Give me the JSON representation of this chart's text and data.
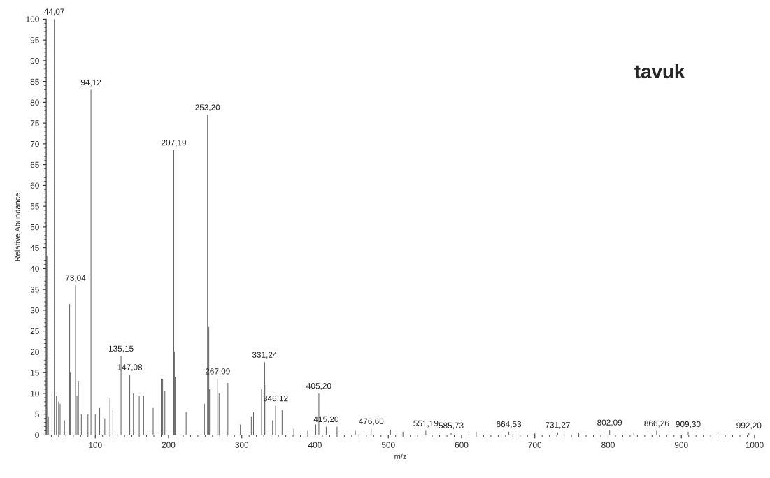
{
  "chart_data": {
    "type": "bar",
    "title": "tavuk",
    "xlabel": "m/z",
    "ylabel": "Relative Abundance",
    "x": [
      34,
      36,
      41,
      44.07,
      47,
      50,
      52,
      58,
      65,
      66,
      73.04,
      75,
      77,
      81,
      90,
      94.12,
      100,
      106,
      113,
      120,
      124,
      135.15,
      147.08,
      152,
      160,
      166,
      179,
      190,
      192,
      195,
      207.19,
      208,
      209,
      224,
      249,
      253.2,
      255,
      256,
      267.09,
      269,
      281,
      298,
      313,
      316,
      327,
      331.24,
      333,
      342,
      346.12,
      355,
      371,
      390,
      401,
      405.2,
      415.2,
      430,
      455,
      476.6,
      503,
      520,
      551.19,
      585.73,
      620,
      664.53,
      700,
      731.27,
      760,
      802.09,
      835,
      866.26,
      909.3,
      950,
      992.2
    ],
    "values": [
      43,
      4.5,
      10,
      100,
      9.5,
      8,
      7.5,
      3.5,
      31.5,
      15,
      36,
      9.5,
      13,
      5,
      5,
      83,
      5,
      6.5,
      4,
      9,
      6,
      19,
      14.5,
      10,
      9.5,
      9.5,
      6.5,
      13.5,
      13.5,
      10.5,
      68.5,
      20,
      14,
      5.5,
      7.5,
      77,
      26,
      11,
      13.5,
      10,
      12.5,
      2.5,
      4.5,
      5.5,
      11,
      17.5,
      12,
      3.5,
      7,
      6,
      1.5,
      1,
      2.5,
      10,
      2,
      2,
      1,
      1.5,
      1.2,
      0.8,
      1,
      0.5,
      0.8,
      0.8,
      0.6,
      0.6,
      0.5,
      1.2,
      0.6,
      1,
      0.8,
      0.6,
      0.5
    ],
    "annotations": [
      {
        "text": "44,07",
        "x": 44.07,
        "y": 100
      },
      {
        "text": "73,04",
        "x": 73.04,
        "y": 36
      },
      {
        "text": "94,12",
        "x": 94.12,
        "y": 83
      },
      {
        "text": "135,15",
        "x": 135.15,
        "y": 19
      },
      {
        "text": "147,08",
        "x": 147.08,
        "y": 14.5
      },
      {
        "text": "207,19",
        "x": 207.19,
        "y": 68.5
      },
      {
        "text": "253,20",
        "x": 253.2,
        "y": 77
      },
      {
        "text": "267,09",
        "x": 267.09,
        "y": 13.5
      },
      {
        "text": "331,24",
        "x": 331.24,
        "y": 17.5
      },
      {
        "text": "346,12",
        "x": 346.12,
        "y": 7
      },
      {
        "text": "405,20",
        "x": 405.2,
        "y": 10
      },
      {
        "text": "415,20",
        "x": 415.2,
        "y": 2
      },
      {
        "text": "476,60",
        "x": 476.6,
        "y": 1.5
      },
      {
        "text": "551,19",
        "x": 551.19,
        "y": 1
      },
      {
        "text": "585,73",
        "x": 585.73,
        "y": 0.5
      },
      {
        "text": "664,53",
        "x": 664.53,
        "y": 0.8
      },
      {
        "text": "731,27",
        "x": 731.27,
        "y": 0.6
      },
      {
        "text": "802,09",
        "x": 802.09,
        "y": 1.2
      },
      {
        "text": "866,26",
        "x": 866.26,
        "y": 1
      },
      {
        "text": "909,30",
        "x": 909.3,
        "y": 0.8
      },
      {
        "text": "992,20",
        "x": 992.2,
        "y": 0.5
      }
    ],
    "color": "#666666",
    "xlim": [
      33,
      1000
    ],
    "xticks": [
      100,
      200,
      300,
      400,
      500,
      600,
      700,
      800,
      900,
      1000
    ],
    "ylim": [
      0,
      100
    ],
    "yticks": [
      0,
      5,
      10,
      15,
      20,
      25,
      30,
      35,
      40,
      45,
      50,
      55,
      60,
      65,
      70,
      75,
      80,
      85,
      90,
      95,
      100
    ],
    "grid": false,
    "legend": false
  }
}
